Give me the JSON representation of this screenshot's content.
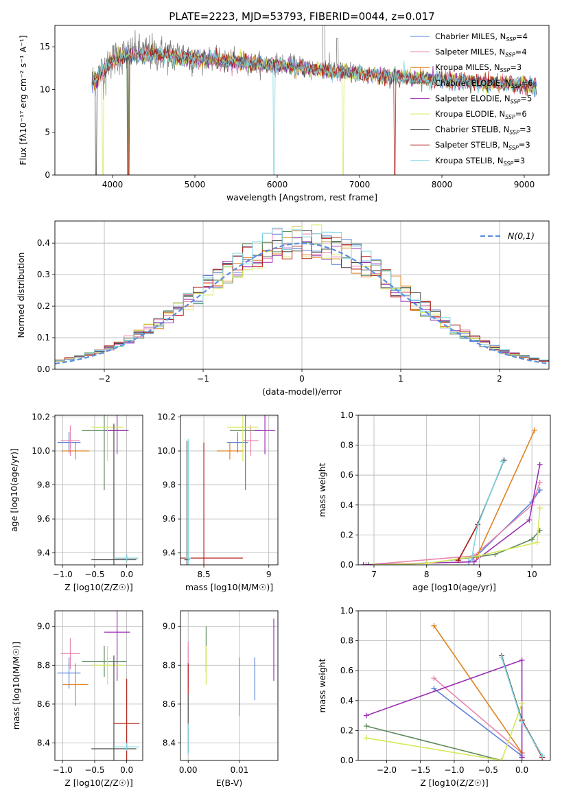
{
  "figure_title": "PLATE=2223, MJD=53793, FIBERID=0044, z=0.017",
  "colors": {
    "Chabrier MILES": "#5b80d9",
    "Salpeter MILES": "#e884b0",
    "Kroupa MILES": "#e0821f",
    "Chabrier ELODIE": "#5c8a5c",
    "Salpeter ELODIE": "#9a2fb3",
    "Kroupa ELODIE": "#d6e85a",
    "Chabrier STELIB": "#4a4a4a",
    "Salpeter STELIB": "#b5201b",
    "Kroupa STELIB": "#7fd6e0",
    "observed": "#808080",
    "gaussian": "#5b8ee0"
  },
  "chart_data": [
    {
      "id": "spectrum",
      "type": "line",
      "title": "PLATE=2223, MJD=53793, FIBERID=0044, z=0.017",
      "xlabel": "wavelength [Angstrom, rest frame]",
      "ylabel": "Flux [fλ10⁻¹⁷ erg cm⁻² s⁻¹ A⁻¹]",
      "xlim": [
        3300,
        9300
      ],
      "ylim": [
        0,
        17.5
      ],
      "xticks": [
        4000,
        5000,
        6000,
        7000,
        8000,
        9000
      ],
      "yticks": [
        0,
        5,
        10,
        15
      ],
      "grid": false,
      "legend_position": "top-right",
      "legend": [
        "Chabrier MILES, N_SSP=4",
        "Salpeter MILES, N_SSP=4",
        "Kroupa MILES, N_SSP=3",
        "Chabrier ELODIE, N_SSP=6",
        "Salpeter ELODIE, N_SSP=5",
        "Kroupa ELODIE, N_SSP=6",
        "Chabrier STELIB, N_SSP=3",
        "Salpeter STELIB, N_SSP=3",
        "Kroupa STELIB, N_SSP=3"
      ],
      "continuum_x": [
        3750,
        3850,
        3950,
        4050,
        4200,
        4400,
        4600,
        4800,
        5000,
        5200,
        5400,
        5600,
        5800,
        6000,
        6200,
        6400,
        6600,
        6800,
        7000,
        7200,
        7400,
        7600,
        7800,
        8000,
        8200,
        8400,
        8600,
        8800,
        9000,
        9150
      ],
      "continuum_y": [
        11.0,
        12.0,
        13.2,
        13.8,
        14.2,
        14.3,
        14.2,
        14.0,
        13.8,
        13.6,
        13.5,
        13.3,
        13.1,
        13.0,
        12.8,
        12.6,
        12.4,
        12.2,
        12.0,
        11.8,
        11.7,
        11.6,
        11.4,
        11.3,
        11.1,
        11.0,
        10.9,
        10.8,
        10.7,
        10.6
      ]
    },
    {
      "id": "residuals",
      "type": "line",
      "xlabel": "(data-model)/error",
      "ylabel": "Normed distribution",
      "xlim": [
        -2.5,
        2.5
      ],
      "ylim": [
        0,
        0.47
      ],
      "xticks": [
        -2,
        -1,
        0,
        1,
        2
      ],
      "yticks": [
        0.0,
        0.1,
        0.2,
        0.3,
        0.4
      ],
      "grid": true,
      "legend_position": "top-right",
      "legend": [
        "N(0,1)"
      ],
      "bin_width": 0.1,
      "bin_start": -2.5
    },
    {
      "id": "age_vs_Z",
      "type": "scatter",
      "xlabel": "Z [log10(Z/Z☉)]",
      "ylabel": "age  [log10(age/yr)]",
      "xlim": [
        -1.12,
        0.25
      ],
      "ylim": [
        9.33,
        10.21
      ],
      "xticks": [
        -1.0,
        -0.5,
        0.0
      ],
      "xticklabels": [
        "−1.0",
        "−0.5",
        "0.0"
      ],
      "yticks": [
        9.4,
        9.6,
        9.8,
        10.0,
        10.2
      ],
      "grid": true,
      "points": [
        {
          "m": "Chabrier MILES",
          "x": -0.9,
          "y": 10.05,
          "xe": 0.18,
          "ye": 0.06
        },
        {
          "m": "Salpeter MILES",
          "x": -0.88,
          "y": 10.06,
          "xe": 0.15,
          "ye": 0.09
        },
        {
          "m": "Kroupa MILES",
          "x": -0.8,
          "y": 10.0,
          "xe": 0.22,
          "ye": 0.05
        },
        {
          "m": "Chabrier ELODIE",
          "x": -0.35,
          "y": 10.12,
          "xe": 0.35,
          "ye": 0.35
        },
        {
          "m": "Salpeter ELODIE",
          "x": -0.15,
          "y": 10.12,
          "xe": 0.18,
          "ye": 0.14
        },
        {
          "m": "Kroupa ELODIE",
          "x": -0.3,
          "y": 10.14,
          "xe": 0.25,
          "ye": 0.2
        },
        {
          "m": "Chabrier STELIB",
          "x": -0.2,
          "y": 9.36,
          "xe": 0.35,
          "ye": 0.8
        },
        {
          "m": "Salpeter STELIB",
          "x": 0.0,
          "y": 9.37,
          "xe": 0.18,
          "ye": 0.02
        },
        {
          "m": "Kroupa STELIB",
          "x": 0.0,
          "y": 9.37,
          "xe": 0.18,
          "ye": 0.02
        }
      ]
    },
    {
      "id": "age_vs_mass",
      "type": "scatter",
      "xlabel": "mass [log10(M/M☉)]",
      "xlim": [
        8.32,
        9.07
      ],
      "ylim": [
        9.33,
        10.21
      ],
      "xticks": [
        8.5,
        9.0
      ],
      "yticks": [
        9.4,
        9.6,
        9.8,
        10.0,
        10.2
      ],
      "grid": true,
      "points": [
        {
          "m": "Chabrier MILES",
          "x": 8.76,
          "y": 10.05,
          "xe": 0.08,
          "ye": 0.06
        },
        {
          "m": "Salpeter MILES",
          "x": 8.86,
          "y": 10.06,
          "xe": 0.06,
          "ye": 0.09
        },
        {
          "m": "Kroupa MILES",
          "x": 8.7,
          "y": 10.0,
          "xe": 0.1,
          "ye": 0.05
        },
        {
          "m": "Chabrier ELODIE",
          "x": 8.82,
          "y": 10.12,
          "xe": 0.12,
          "ye": 0.35
        },
        {
          "m": "Salpeter ELODIE",
          "x": 8.97,
          "y": 10.12,
          "xe": 0.08,
          "ye": 0.14
        },
        {
          "m": "Kroupa ELODIE",
          "x": 8.8,
          "y": 10.14,
          "xe": 0.12,
          "ye": 0.2
        },
        {
          "m": "Chabrier STELIB",
          "x": 8.37,
          "y": 9.36,
          "xe": 0.02,
          "ye": 0.7
        },
        {
          "m": "Salpeter STELIB",
          "x": 8.5,
          "y": 9.37,
          "xe": 0.3,
          "ye": 0.68
        },
        {
          "m": "Kroupa STELIB",
          "x": 8.38,
          "y": 9.37,
          "xe": 0.02,
          "ye": 0.7
        }
      ]
    },
    {
      "id": "weight_vs_age",
      "type": "line",
      "xlabel": "age  [log10(age/yr)]",
      "ylabel": "mass weight",
      "xlim": [
        6.7,
        10.35
      ],
      "ylim": [
        0,
        1.0
      ],
      "xticks": [
        7,
        8,
        9,
        10
      ],
      "yticks": [
        0.0,
        0.2,
        0.4,
        0.6,
        0.8,
        1.0
      ],
      "grid": true,
      "series": [
        {
          "m": "Chabrier MILES",
          "x": [
            8.8,
            8.95,
            10.0,
            10.15
          ],
          "y": [
            0.02,
            0.06,
            0.42,
            0.5
          ]
        },
        {
          "m": "Salpeter MILES",
          "x": [
            6.85,
            8.9,
            10.0,
            10.15
          ],
          "y": [
            0.0,
            0.06,
            0.4,
            0.55
          ]
        },
        {
          "m": "Kroupa MILES",
          "x": [
            8.95,
            10.05
          ],
          "y": [
            0.05,
            0.9
          ]
        },
        {
          "m": "Chabrier ELODIE",
          "x": [
            6.9,
            8.0,
            9.3,
            10.0,
            10.15
          ],
          "y": [
            0.0,
            0.01,
            0.07,
            0.17,
            0.23
          ]
        },
        {
          "m": "Salpeter ELODIE",
          "x": [
            6.8,
            8.9,
            9.95,
            10.15
          ],
          "y": [
            0.0,
            0.02,
            0.3,
            0.67
          ]
        },
        {
          "m": "Kroupa ELODIE",
          "x": [
            7.0,
            8.0,
            9.0,
            10.1,
            10.15
          ],
          "y": [
            0.0,
            0.01,
            0.06,
            0.15,
            0.38
          ]
        },
        {
          "m": "Chabrier STELIB",
          "x": [
            8.6,
            8.97,
            9.47
          ],
          "y": [
            0.03,
            0.27,
            0.7
          ]
        },
        {
          "m": "Salpeter STELIB",
          "x": [
            8.6,
            8.97
          ],
          "y": [
            0.03,
            0.27
          ]
        },
        {
          "m": "Kroupa STELIB",
          "x": [
            8.85,
            8.97,
            9.45
          ],
          "y": [
            0.03,
            0.26,
            0.69
          ]
        }
      ]
    },
    {
      "id": "mass_vs_Z",
      "type": "scatter",
      "xlabel": "Z [log10(Z/Z☉)]",
      "ylabel": "mass [log10(M/M☉)]",
      "xlim": [
        -1.12,
        0.25
      ],
      "ylim": [
        8.31,
        9.08
      ],
      "xticks": [
        -1.0,
        -0.5,
        0.0
      ],
      "xticklabels": [
        "−1.0",
        "−0.5",
        "0.0"
      ],
      "yticks": [
        8.4,
        8.6,
        8.8,
        9.0
      ],
      "grid": true,
      "points": [
        {
          "m": "Chabrier MILES",
          "x": -0.9,
          "y": 8.76,
          "xe": 0.18,
          "ye": 0.08
        },
        {
          "m": "Salpeter MILES",
          "x": -0.88,
          "y": 8.86,
          "xe": 0.15,
          "ye": 0.08
        },
        {
          "m": "Kroupa MILES",
          "x": -0.8,
          "y": 8.7,
          "xe": 0.2,
          "ye": 0.11
        },
        {
          "m": "Chabrier ELODIE",
          "x": -0.35,
          "y": 8.82,
          "xe": 0.35,
          "ye": 0.08
        },
        {
          "m": "Salpeter ELODIE",
          "x": -0.15,
          "y": 8.97,
          "xe": 0.2,
          "ye": 0.25
        },
        {
          "m": "Kroupa ELODIE",
          "x": -0.3,
          "y": 8.8,
          "xe": 0.25,
          "ye": 0.1
        },
        {
          "m": "Chabrier STELIB",
          "x": -0.2,
          "y": 8.37,
          "xe": 0.35,
          "ye": 0.48
        },
        {
          "m": "Salpeter STELIB",
          "x": 0.0,
          "y": 8.5,
          "xe": 0.2,
          "ye": 0.23
        },
        {
          "m": "Kroupa STELIB",
          "x": 0.0,
          "y": 8.38,
          "xe": 0.2,
          "ye": 0.02
        }
      ]
    },
    {
      "id": "mass_vs_ebv",
      "type": "scatter",
      "xlabel": "E(B-V)",
      "xlim": [
        -0.0015,
        0.0175
      ],
      "ylim": [
        8.31,
        9.08
      ],
      "xticks": [
        0.0,
        0.01
      ],
      "xticklabels": [
        "0.00",
        "0.01"
      ],
      "yticks": [
        8.4,
        8.6,
        8.8,
        9.0
      ],
      "grid": true,
      "points": [
        {
          "m": "Chabrier MILES",
          "x": 0.013,
          "y": 8.73,
          "xe": 0,
          "ye": 0.11
        },
        {
          "m": "Salpeter MILES",
          "x": 0.0,
          "y": 8.8,
          "xe": 0,
          "ye": 0.12
        },
        {
          "m": "Kroupa MILES",
          "x": 0.01,
          "y": 8.69,
          "xe": 0,
          "ye": 0.15
        },
        {
          "m": "Chabrier ELODIE",
          "x": 0.0035,
          "y": 8.88,
          "xe": 0,
          "ye": 0.12
        },
        {
          "m": "Salpeter ELODIE",
          "x": 0.0167,
          "y": 8.88,
          "xe": 0,
          "ye": 0.16
        },
        {
          "m": "Kroupa ELODIE",
          "x": 0.0035,
          "y": 8.8,
          "xe": 0,
          "ye": 0.1
        },
        {
          "m": "Chabrier STELIB",
          "x": 0.0,
          "y": 8.5,
          "xe": 0,
          "ye": 0.15
        },
        {
          "m": "Salpeter STELIB",
          "x": 0.0,
          "y": 8.73,
          "xe": 0,
          "ye": 0.08
        },
        {
          "m": "Kroupa STELIB",
          "x": 0.0,
          "y": 8.42,
          "xe": 0,
          "ye": 0.08
        }
      ]
    },
    {
      "id": "weight_vs_Z",
      "type": "line",
      "xlabel": "Z [log10(Z/Z☉)]",
      "ylabel": "mass weight",
      "xlim": [
        -2.42,
        0.42
      ],
      "ylim": [
        0,
        1.0
      ],
      "xticks": [
        -2.0,
        -1.5,
        -1.0,
        -0.5,
        0.0
      ],
      "xticklabels": [
        "−2.0",
        "−1.5",
        "−1.0",
        "−0.5",
        "0.0"
      ],
      "yticks": [
        0.0,
        0.2,
        0.4,
        0.6,
        0.8,
        1.0
      ],
      "grid": true,
      "series": [
        {
          "m": "Chabrier MILES",
          "x": [
            -1.3,
            0.0
          ],
          "y": [
            0.48,
            0.03
          ]
        },
        {
          "m": "Salpeter MILES",
          "x": [
            -1.3,
            0.0
          ],
          "y": [
            0.55,
            0.05
          ]
        },
        {
          "m": "Kroupa MILES",
          "x": [
            -1.3,
            0.0
          ],
          "y": [
            0.9,
            0.05
          ]
        },
        {
          "m": "Chabrier ELODIE",
          "x": [
            -2.3,
            -0.3,
            0.0
          ],
          "y": [
            0.23,
            0.0,
            0.0
          ]
        },
        {
          "m": "Salpeter ELODIE",
          "x": [
            -2.3,
            0.0,
            0.0
          ],
          "y": [
            0.3,
            0.67,
            0.02
          ]
        },
        {
          "m": "Kroupa ELODIE",
          "x": [
            -2.3,
            -0.3,
            0.0
          ],
          "y": [
            0.15,
            0.0,
            0.38
          ]
        },
        {
          "m": "Chabrier STELIB",
          "x": [
            -0.3,
            0.0,
            0.3
          ],
          "y": [
            0.7,
            0.27,
            0.03
          ]
        },
        {
          "m": "Salpeter STELIB",
          "x": [
            0.0,
            0.3
          ],
          "y": [
            0.27,
            0.02
          ]
        },
        {
          "m": "Kroupa STELIB",
          "x": [
            -0.3,
            0.0,
            0.3
          ],
          "y": [
            0.69,
            0.26,
            0.03
          ]
        }
      ]
    }
  ]
}
